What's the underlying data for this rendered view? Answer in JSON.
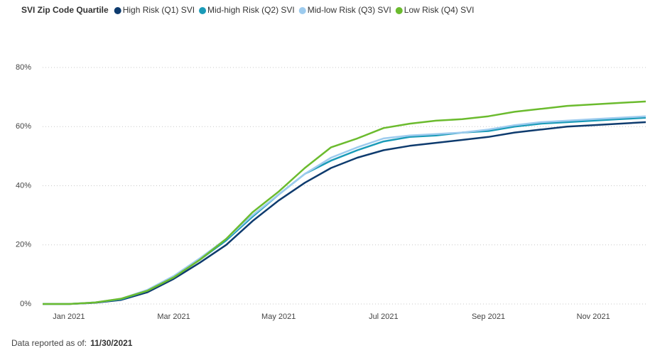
{
  "chart_data": {
    "type": "line",
    "legend_title": "SVI Zip Code Quartile",
    "categories": [
      null,
      "Jan 2021",
      null,
      null,
      null,
      "Mar 2021",
      null,
      null,
      null,
      "May 2021",
      null,
      null,
      null,
      "Jul 2021",
      null,
      null,
      null,
      "Sep 2021",
      null,
      null,
      null,
      "Nov 2021",
      null,
      null
    ],
    "series": [
      {
        "name": "High Risk (Q1) SVI",
        "color": "#0e3b6e",
        "values": [
          0,
          0,
          0.4,
          1.4,
          4,
          8.5,
          14,
          20,
          28,
          35,
          41,
          46,
          49.5,
          52,
          53.5,
          54.5,
          55.5,
          56.5,
          58,
          59,
          60,
          60.5,
          61,
          61.5
        ]
      },
      {
        "name": "Mid-high Risk (Q2) SVI",
        "color": "#1a9bb8",
        "values": [
          0,
          0,
          0.5,
          1.6,
          4.5,
          9,
          15,
          21.5,
          29.5,
          37,
          44,
          48.5,
          52,
          55,
          56.5,
          57,
          58,
          58.5,
          60,
          61,
          61.5,
          62,
          62.5,
          63
        ]
      },
      {
        "name": "Mid-low Risk (Q3) SVI",
        "color": "#9dcbee",
        "values": [
          0,
          0,
          0.5,
          1.8,
          4.8,
          9.5,
          15.5,
          22,
          30,
          37,
          44,
          49.5,
          53,
          56,
          57,
          57.5,
          58,
          59,
          60.5,
          61.5,
          62,
          62.5,
          63,
          63.5
        ]
      },
      {
        "name": "Low Risk (Q4) SVI",
        "color": "#6bbb2e",
        "values": [
          0,
          0,
          0.5,
          1.8,
          4.5,
          9,
          15,
          22,
          31,
          38,
          46,
          53,
          56,
          59.5,
          61,
          62,
          62.5,
          63.5,
          65,
          66,
          67,
          67.5,
          68,
          68.5
        ]
      }
    ],
    "ylim": [
      0,
      80
    ],
    "yticks": [
      {
        "value": 0,
        "label": "0%"
      },
      {
        "value": 20,
        "label": "20%"
      },
      {
        "value": 40,
        "label": "40%"
      },
      {
        "value": 60,
        "label": "60%"
      },
      {
        "value": 80,
        "label": "80%"
      }
    ],
    "grid": true,
    "footnote_label": "Data reported as of:",
    "footnote_date": "11/30/2021"
  }
}
